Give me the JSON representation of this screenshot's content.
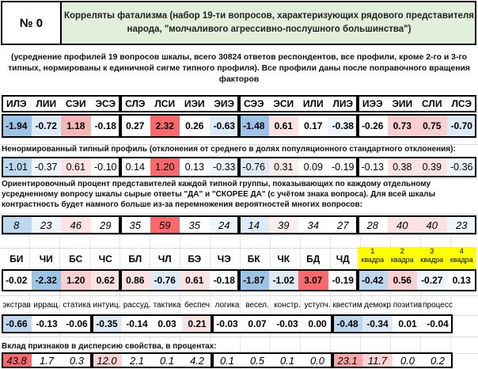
{
  "number": "№ 0",
  "title": "Корреляты фатализма (набор 19-ти вопросов, характеризующих рядового представителя народа, \"молчаливого агрессивно-послушного большинства\")",
  "intro": "(усреднение профилей 19 вопросов шкалы, всего 30824 ответов респондентов, все профили, кроме 2-го и 3-го типных, нормированы к единичной сигме типного профиля). Все профили даны после поправочного вращения факторов",
  "types": [
    "ИЛЭ",
    "ЛИИ",
    "СЭИ",
    "ЭСЭ",
    "СЛЭ",
    "ЛСИ",
    "ИЭИ",
    "ЭИЭ",
    "СЭЭ",
    "ЭСИ",
    "ИЛИ",
    "ЛИЭ",
    "ИЭЭ",
    "ЭИИ",
    "СЛИ",
    "ЛСЭ"
  ],
  "row1": [
    "-1.94",
    "-0.72",
    "1.18",
    "-0.18",
    "0.27",
    "2.32",
    "0.26",
    "-0.63",
    "-1.48",
    "0.61",
    "0.17",
    "-0.38",
    "-0.26",
    "0.73",
    "0.75",
    "-0.70"
  ],
  "row1_bg": [
    "#9dc3e6",
    "#deebf7",
    "#f4b6b8",
    "#ffffff",
    "#ffffff",
    "#f8696b",
    "#ffffff",
    "#deebf7",
    "#9dc3e6",
    "#fbe2e3",
    "#ffffff",
    "#eef5fb",
    "#ffffff",
    "#f8d0d1",
    "#f8d0d1",
    "#deebf7"
  ],
  "label2": "Ненормированный типный профиль (отклонения от среднего  в долях популяционного стандартного отклонения):",
  "row2": [
    "-1.01",
    "-0.37",
    "0.61",
    "-0.10",
    "0.14",
    "1.20",
    "0.13",
    "-0.33",
    "-0.76",
    "0.31",
    "0.09",
    "-0.19",
    "-0.13",
    "0.38",
    "0.39",
    "-0.36"
  ],
  "row2_bg": [
    "#bdd7ee",
    "#eef5fb",
    "#fbe2e3",
    "#ffffff",
    "#ffffff",
    "#f8696b",
    "#ffffff",
    "#eef5fb",
    "#deebf7",
    "#fbeeee",
    "#ffffff",
    "#ffffff",
    "#ffffff",
    "#fbe2e3",
    "#fbe2e3",
    "#eef5fb"
  ],
  "label3": "Ориентировочный процент представителей каждой типной группы, показывающих по каждому отдельному усредненному вопросу шкалы сырые ответы \"ДА\" и \"СКОРЕЕ ДА\" (с учётом знака вопроса). Для всей шкалы контрастность будет намного больше из-за перемножения вероятностей многих вопросов:",
  "row3": [
    "8",
    "23",
    "46",
    "29",
    "35",
    "59",
    "35",
    "24",
    "14",
    "39",
    "34",
    "27",
    "28",
    "40",
    "40",
    "23"
  ],
  "row3_bg": [
    "#bdd7ee",
    "#eef5fb",
    "#fbe2e3",
    "#ffffff",
    "#ffffff",
    "#f8696b",
    "#ffffff",
    "#eef5fb",
    "#deebf7",
    "#fbeeee",
    "#ffffff",
    "#ffffff",
    "#ffffff",
    "#fbe2e3",
    "#fbe2e3",
    "#eef5fb"
  ],
  "groups": [
    "БИ",
    "ЧИ",
    "БС",
    "ЧС",
    "БЛ",
    "ЧЛ",
    "БЭ",
    "ЧЭ",
    "БК",
    "ЧК",
    "БД",
    "ЧД"
  ],
  "groups_vals": [
    "-0.02",
    "-2.32",
    "1.20",
    "0.62",
    "0.86",
    "-0.76",
    "0.61",
    "-0.18",
    "-1.87",
    "-1.02",
    "3.07",
    "-0.19"
  ],
  "groups_bg": [
    "#ffffff",
    "#9dc3e6",
    "#f8d0d1",
    "#fbe2e3",
    "#fbe2e3",
    "#deebf7",
    "#fbe2e3",
    "#ffffff",
    "#9dc3e6",
    "#deebf7",
    "#f8696b",
    "#ffffff"
  ],
  "quadras": [
    {
      "n": "1",
      "w": "квадра"
    },
    {
      "n": "2",
      "w": "квадра"
    },
    {
      "n": "3",
      "w": "квадра"
    },
    {
      "n": "4",
      "w": "квадра"
    }
  ],
  "quadras_vals": [
    "-0.42",
    "0.56",
    "-0.27",
    "0.13"
  ],
  "quadras_bg": [
    "#bdd7ee",
    "#f8d0d1",
    "#eef5fb",
    "#ffffff"
  ],
  "traits": [
    "экстрав",
    "ирращ.",
    "статика",
    "интуиц.",
    "рассуд.",
    "тактика",
    "беспеч",
    "логика",
    "весел.",
    "констр.",
    "уступч.",
    "квестим",
    "демокр",
    "позитив",
    "процесс"
  ],
  "traits_vals": [
    "-0.66",
    "-0.13",
    "-0.06",
    "-0.35",
    "-0.14",
    "0.03",
    "0.21",
    "-0.03",
    "0.07",
    "-0.03",
    "0.00",
    "-0.48",
    "-0.34",
    "0.01",
    "-0.04"
  ],
  "traits_bg": [
    "#bdd7ee",
    "#ffffff",
    "#ffffff",
    "#deebf7",
    "#ffffff",
    "#ffffff",
    "#fbe2e3",
    "#ffffff",
    "#ffffff",
    "#ffffff",
    "#ffffff",
    "#bdd7ee",
    "#deebf7",
    "#ffffff",
    "#ffffff"
  ],
  "label5": "Вклад признаков в дисперсию свойства, в процентах:",
  "contrib": [
    "43.8",
    "1.7",
    "0.3",
    "12.0",
    "2.1",
    "0.1",
    "4.2",
    "0.1",
    "0.5",
    "0.1",
    "0.0",
    "23.1",
    "11.7",
    "0.0",
    "0.2"
  ],
  "contrib_bg": [
    "#f8696b",
    "#ffffff",
    "#ffffff",
    "#fbd3d4",
    "#ffffff",
    "#ffffff",
    "#ffffff",
    "#ffffff",
    "#ffffff",
    "#ffffff",
    "#ffffff",
    "#f8a5a6",
    "#fbd3d4",
    "#ffffff",
    "#ffffff"
  ]
}
